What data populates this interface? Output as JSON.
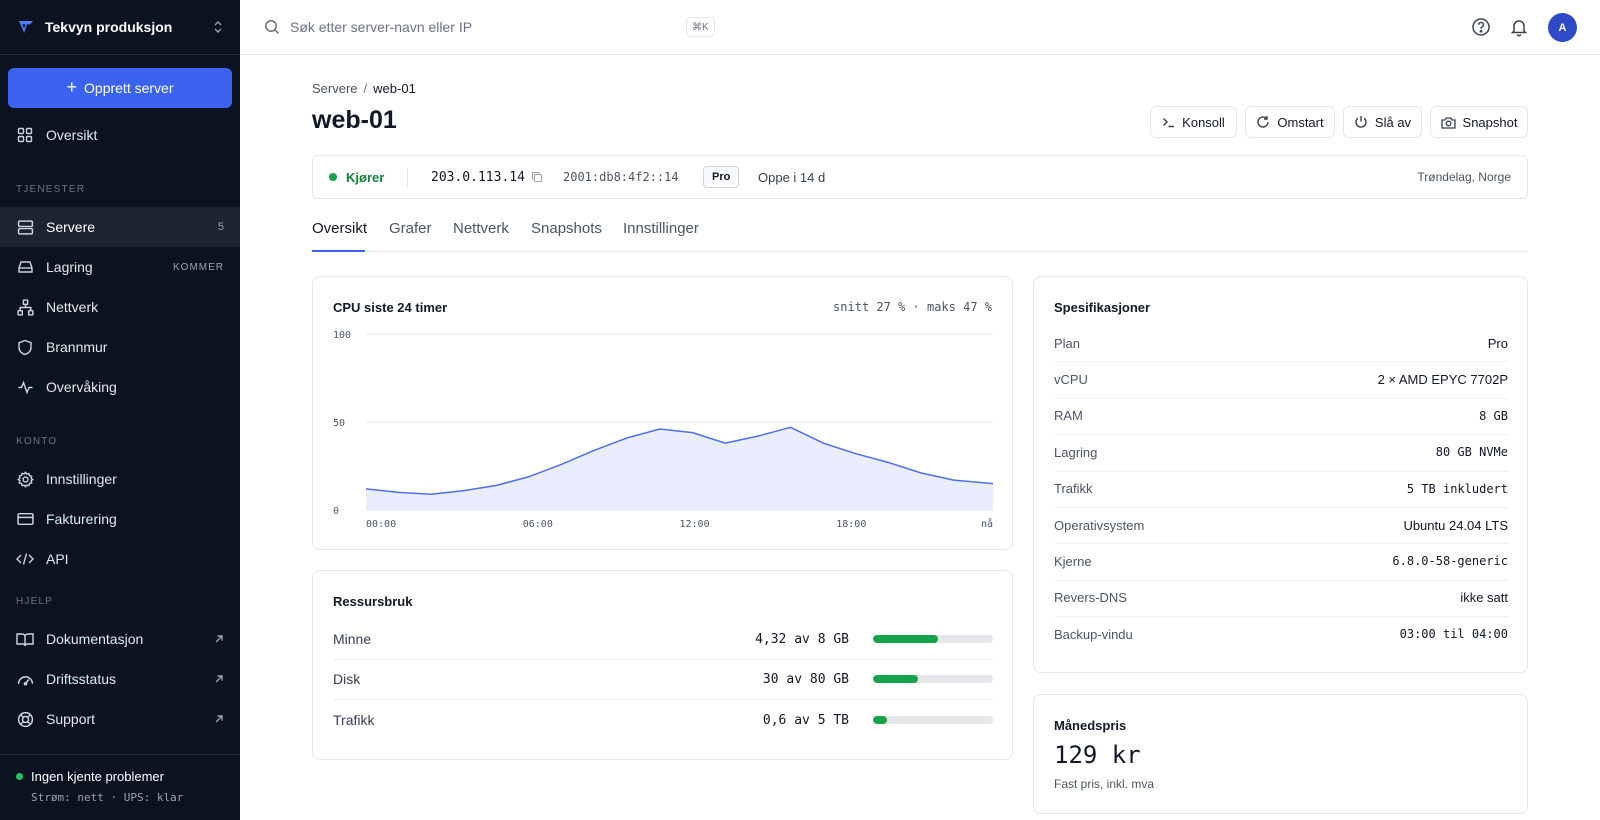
{
  "sidebar": {
    "org_name": "Tekvyn produksjon",
    "create_label": "Opprett server",
    "overview_label": "Oversikt",
    "section_services": "TJENESTER",
    "services": [
      {
        "label": "Servere",
        "icon": "server-icon",
        "badge": "5"
      },
      {
        "label": "Lagring",
        "icon": "storage-icon",
        "badge": "KOMMER"
      },
      {
        "label": "Nettverk",
        "icon": "network-icon"
      },
      {
        "label": "Brannmur",
        "icon": "shield-icon"
      },
      {
        "label": "Overvåking",
        "icon": "activity-icon"
      }
    ],
    "section_account": "KONTO",
    "account": [
      {
        "label": "Innstillinger",
        "icon": "gear-icon"
      },
      {
        "label": "Fakturering",
        "icon": "credit-card-icon"
      },
      {
        "label": "API",
        "icon": "code-icon"
      }
    ],
    "section_help": "HJELP",
    "help": [
      {
        "label": "Dokumentasjon",
        "icon": "book-icon"
      },
      {
        "label": "Driftsstatus",
        "icon": "status-gauge-icon"
      },
      {
        "label": "Support",
        "icon": "lifebuoy-icon"
      }
    ],
    "status_title": "Ingen kjente problemer",
    "status_detail": "Strøm: nett · UPS: klar"
  },
  "topbar": {
    "search_placeholder": "Søk etter server-navn eller IP",
    "shortcut": "⌘K",
    "avatar_initial": "A"
  },
  "breadcrumb": {
    "parent": "Servere",
    "separator": "/",
    "current": "web-01"
  },
  "page_title": "web-01",
  "actions": {
    "console": "Konsoll",
    "restart": "Omstart",
    "power_off": "Slå av",
    "snapshot": "Snapshot"
  },
  "status": {
    "state": "Kjører",
    "ipv4": "203.0.113.14",
    "ipv6": "2001:db8:4f2::14",
    "plan": "Pro",
    "uptime": "Oppe i 14 d",
    "location": "Trøndelag, Norge"
  },
  "tabs": [
    "Oversikt",
    "Grafer",
    "Nettverk",
    "Snapshots",
    "Innstillinger"
  ],
  "active_tab": "Oversikt",
  "cpu_card": {
    "title": "CPU siste 24 timer",
    "summary": "snitt 27 % · maks 47 %"
  },
  "chart_data": {
    "type": "area",
    "title": "CPU siste 24 timer",
    "x_labels": [
      "00:00",
      "06:00",
      "12:00",
      "18:00",
      "nå"
    ],
    "x": [
      0,
      1.25,
      2.5,
      3.75,
      5,
      6.25,
      7.5,
      8.75,
      10,
      11.25,
      12.5,
      13.75,
      15,
      16.25,
      17.5,
      18.75,
      20,
      21.25,
      22.5,
      24
    ],
    "y": [
      12,
      10,
      9,
      11,
      14,
      19,
      26,
      34,
      41,
      46,
      44,
      38,
      42,
      47,
      38,
      32,
      27,
      21,
      17,
      15
    ],
    "y_ticks": [
      0,
      50,
      100
    ],
    "ylim": [
      0,
      100
    ],
    "grid": true,
    "colors": {
      "line": "#4f6ef0",
      "fill": "#e7ebfd"
    }
  },
  "resources": {
    "title": "Ressursbruk",
    "rows": [
      {
        "label": "Minne",
        "value": "4,32 av 8 GB",
        "fraction": 0.54
      },
      {
        "label": "Disk",
        "value": "30 av 80 GB",
        "fraction": 0.375
      },
      {
        "label": "Trafikk",
        "value": "0,6 av 5 TB",
        "fraction": 0.12
      }
    ],
    "bar_color": "#16a34a"
  },
  "specs": {
    "title": "Spesifikasjoner",
    "rows": [
      {
        "key": "Plan",
        "value": "Pro",
        "mono": false
      },
      {
        "key": "vCPU",
        "value": "2 × AMD EPYC 7702P",
        "mono": false
      },
      {
        "key": "RAM",
        "value": "8 GB",
        "mono": true
      },
      {
        "key": "Lagring",
        "value": "80 GB NVMe",
        "mono": true
      },
      {
        "key": "Trafikk",
        "value": "5 TB inkludert",
        "mono": true
      },
      {
        "key": "Operativsystem",
        "value": "Ubuntu 24.04 LTS",
        "mono": false
      },
      {
        "key": "Kjerne",
        "value": "6.8.0-58-generic",
        "mono": true
      },
      {
        "key": "Revers-DNS",
        "value": "ikke satt",
        "mono": false
      },
      {
        "key": "Backup-vindu",
        "value": "03:00 til 04:00",
        "mono": true
      }
    ]
  },
  "pricing": {
    "title": "Månedspris",
    "price": "129 kr",
    "note": "Fast pris, inkl. mva"
  },
  "colors": {
    "accent": "#3b63f0",
    "sidebar_bg": "#0b1220",
    "running": "#16a34a"
  }
}
